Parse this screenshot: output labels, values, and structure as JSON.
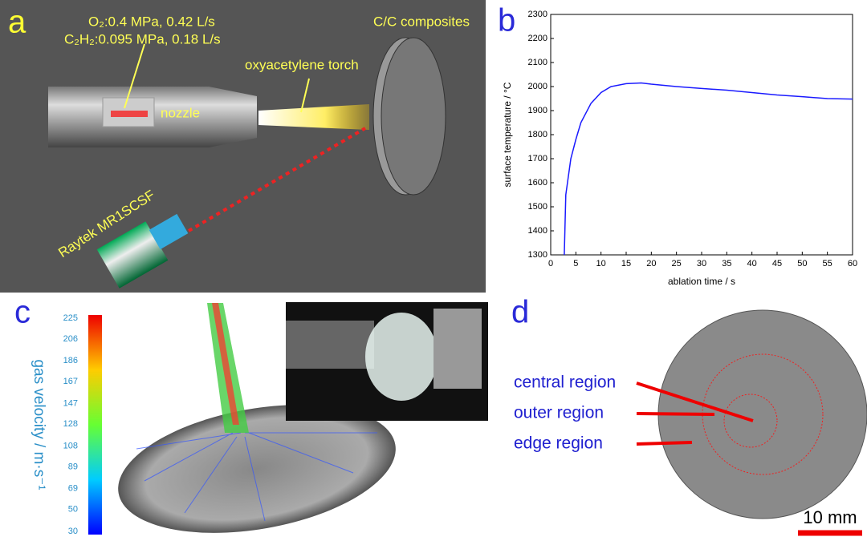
{
  "panel_a": {
    "letter": "a",
    "gas_o2": "O₂:0.4 MPa, 0.42 L/s",
    "gas_c2h2": "C₂H₂:0.095 MPa, 0.18 L/s",
    "target": "C/C composites",
    "torch": "oxyacetylene torch",
    "nozzle": "nozzle",
    "pyrometer": "Raytek MR1SCSF"
  },
  "chart_data": {
    "type": "line",
    "letter": "b",
    "x_label": "ablation time / s",
    "y_label": "surface temperature / °C",
    "x": [
      2.7,
      3,
      4,
      5,
      6,
      8,
      10,
      12,
      15,
      18,
      20,
      25,
      30,
      35,
      40,
      45,
      50,
      55,
      60
    ],
    "values": [
      1300,
      1550,
      1700,
      1780,
      1850,
      1930,
      1975,
      2000,
      2012,
      2015,
      2010,
      2000,
      1992,
      1985,
      1975,
      1965,
      1958,
      1950,
      1948
    ],
    "color": "#1a1aff",
    "xlim": [
      0,
      60
    ],
    "xticks": [
      0,
      5,
      10,
      15,
      20,
      25,
      30,
      35,
      40,
      45,
      50,
      55,
      60
    ],
    "ylim": [
      1300,
      2300
    ],
    "yticks": [
      1300,
      1400,
      1500,
      1600,
      1700,
      1800,
      1900,
      2000,
      2100,
      2200,
      2300
    ]
  },
  "panel_c": {
    "letter": "c",
    "colorbar_label": "gas velocity / m·s⁻¹",
    "colorbar_lim": [
      30,
      225
    ],
    "colorbar_ticks": [
      225,
      206,
      186,
      167,
      147,
      128,
      108,
      89,
      69,
      50,
      30
    ]
  },
  "panel_d": {
    "letter": "d",
    "regions": [
      "central region",
      "outer region",
      "edge region"
    ],
    "scale_bar": "10 mm"
  }
}
